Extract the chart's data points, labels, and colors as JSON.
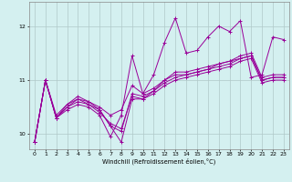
{
  "xlabel": "Windchill (Refroidissement éolien,°C)",
  "xlim": [
    -0.5,
    23.5
  ],
  "ylim": [
    9.72,
    12.45
  ],
  "yticks": [
    10,
    11,
    12
  ],
  "xticks": [
    0,
    1,
    2,
    3,
    4,
    5,
    6,
    7,
    8,
    9,
    10,
    11,
    12,
    13,
    14,
    15,
    16,
    17,
    18,
    19,
    20,
    21,
    22,
    23
  ],
  "bg_color": "#d4f0f0",
  "line_color": "#990099",
  "grid_color": "#b0c8c8",
  "lines": [
    [
      9.85,
      11.0,
      10.3,
      10.45,
      10.55,
      10.5,
      10.35,
      9.95,
      10.35,
      11.45,
      10.75,
      11.1,
      11.7,
      12.15,
      11.5,
      11.55,
      11.8,
      12.0,
      11.9,
      12.1,
      11.05,
      11.1,
      11.8,
      11.75
    ],
    [
      9.85,
      11.0,
      10.3,
      10.55,
      10.7,
      10.6,
      10.45,
      10.15,
      9.85,
      10.65,
      10.65,
      10.8,
      11.0,
      11.1,
      11.1,
      11.15,
      11.2,
      11.3,
      11.35,
      11.4,
      11.45,
      11.0,
      11.05,
      11.05
    ],
    [
      9.85,
      11.0,
      10.35,
      10.55,
      10.65,
      10.6,
      10.5,
      10.35,
      10.45,
      10.9,
      10.75,
      10.85,
      11.0,
      11.15,
      11.15,
      11.2,
      11.25,
      11.3,
      11.35,
      11.45,
      11.5,
      11.05,
      11.1,
      11.1
    ],
    [
      9.85,
      11.0,
      10.3,
      10.5,
      10.65,
      10.55,
      10.45,
      10.15,
      10.05,
      10.75,
      10.7,
      10.8,
      10.95,
      11.05,
      11.1,
      11.15,
      11.2,
      11.25,
      11.3,
      11.4,
      11.45,
      11.0,
      11.05,
      11.05
    ],
    [
      9.85,
      11.0,
      10.3,
      10.5,
      10.6,
      10.55,
      10.4,
      10.2,
      10.1,
      10.7,
      10.65,
      10.75,
      10.9,
      11.0,
      11.05,
      11.1,
      11.15,
      11.2,
      11.25,
      11.35,
      11.4,
      10.95,
      11.0,
      11.0
    ]
  ]
}
